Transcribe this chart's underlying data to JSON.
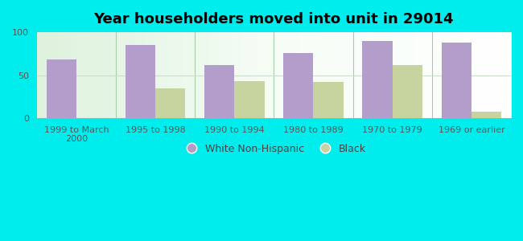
{
  "title": "Year householders moved into unit in 29014",
  "categories": [
    "1999 to March\n2000",
    "1995 to 1998",
    "1990 to 1994",
    "1980 to 1989",
    "1970 to 1979",
    "1969 or earlier"
  ],
  "white_values": [
    68,
    85,
    62,
    76,
    90,
    88
  ],
  "black_values": [
    0,
    35,
    43,
    42,
    62,
    8
  ],
  "white_color": "#b39dca",
  "black_color": "#c8d4a0",
  "background_color": "#00eded",
  "ylim": [
    0,
    100
  ],
  "yticks": [
    0,
    50,
    100
  ],
  "bar_width": 0.38,
  "legend_labels": [
    "White Non-Hispanic",
    "Black"
  ],
  "title_fontsize": 13,
  "tick_fontsize": 8,
  "legend_fontsize": 9,
  "group_separator_color": "#aaccaa",
  "grid_color": "#ccddcc"
}
